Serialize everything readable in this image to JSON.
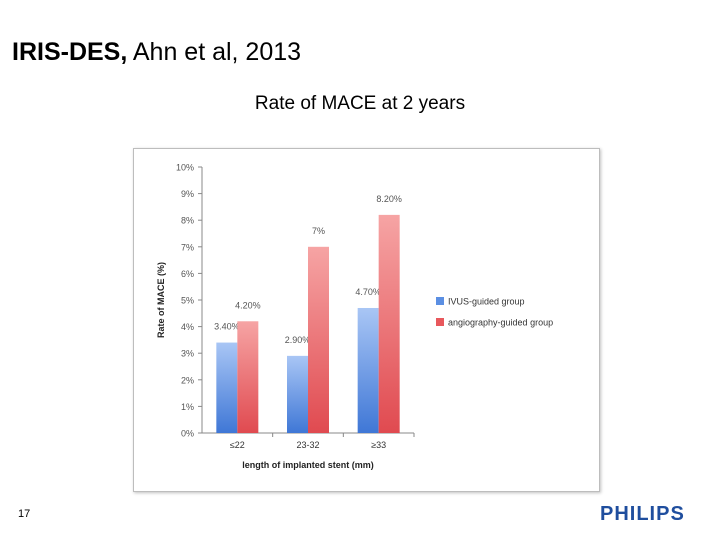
{
  "slide": {
    "title_bold": "IRIS-DES,",
    "title_rest": " Ahn et al, 2013",
    "page_number": "17",
    "logo_text": "PHILIPS"
  },
  "chart_data": {
    "type": "bar",
    "title": "Rate of MACE at 2 years",
    "xlabel": "length of implanted stent (mm)",
    "ylabel": "Rate of MACE (%)",
    "categories": [
      "≤22",
      "23-32",
      "≥33"
    ],
    "ylim": [
      0,
      10
    ],
    "yticks": [
      "0%",
      "1%",
      "2%",
      "3%",
      "4%",
      "5%",
      "6%",
      "7%",
      "8%",
      "9%",
      "10%"
    ],
    "grid": false,
    "legend_position": "right",
    "series": [
      {
        "name": "IVUS-guided group",
        "values": [
          3.4,
          2.9,
          4.7
        ],
        "labels": [
          "3.40%",
          "2.90%",
          "4.70%"
        ],
        "color": "#5b8fe3"
      },
      {
        "name": "angiography-guided group",
        "values": [
          4.2,
          7,
          8.2
        ],
        "labels": [
          "4.20%",
          "7%",
          "8.20%"
        ],
        "color": "#e8585c"
      }
    ]
  }
}
